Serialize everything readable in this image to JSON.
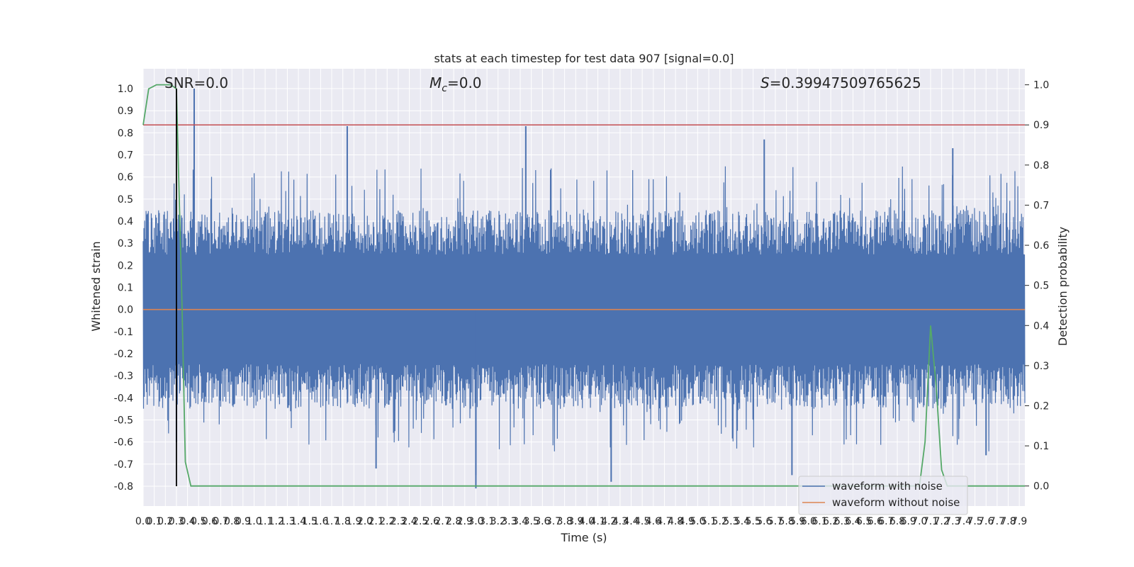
{
  "chart_data": {
    "type": "line",
    "title": "stats at each timestep for test data 907 [signal=0.0]",
    "xlabel": "Time (s)",
    "ylabel": "Whitened strain",
    "y2label": "Detection probability",
    "xlim": [
      0.0,
      7.95
    ],
    "ylim": [
      -0.89,
      1.09
    ],
    "y2lim": [
      -0.05,
      1.04
    ],
    "x_ticks": [
      "0.0",
      "0.1",
      "0.2",
      "0.3",
      "0.4",
      "0.5",
      "0.6",
      "0.7",
      "0.8",
      "0.9",
      "1.0",
      "1.1",
      "1.2",
      "1.3",
      "1.4",
      "1.5",
      "1.6",
      "1.7",
      "1.8",
      "1.9",
      "2.0",
      "2.1",
      "2.2",
      "2.3",
      "2.4",
      "2.5",
      "2.6",
      "2.7",
      "2.8",
      "2.9",
      "3.0",
      "3.1",
      "3.2",
      "3.3",
      "3.4",
      "3.5",
      "3.6",
      "3.7",
      "3.8",
      "3.9",
      "4.0",
      "4.1",
      "4.2",
      "4.3",
      "4.4",
      "4.5",
      "4.6",
      "4.7",
      "4.8",
      "4.9",
      "5.0",
      "5.1",
      "5.2",
      "5.3",
      "5.4",
      "5.5",
      "5.6",
      "5.7",
      "5.8",
      "5.9",
      "6.0",
      "6.1",
      "6.2",
      "6.3",
      "6.4",
      "6.5",
      "6.6",
      "6.7",
      "6.8",
      "6.9",
      "7.0",
      "7.1",
      "7.2",
      "7.3",
      "7.4",
      "7.5",
      "7.6",
      "7.7",
      "7.8",
      "7.9"
    ],
    "y_ticks": [
      "1.0",
      "0.9",
      "0.8",
      "0.7",
      "0.6",
      "0.5",
      "0.4",
      "0.3",
      "0.2",
      "0.1",
      "0.0",
      "-0.1",
      "-0.2",
      "-0.3",
      "-0.4",
      "-0.5",
      "-0.6",
      "-0.7",
      "-0.8"
    ],
    "y2_ticks": [
      "1.0",
      "0.9",
      "0.8",
      "0.7",
      "0.6",
      "0.5",
      "0.4",
      "0.3",
      "0.2",
      "0.1",
      "0.0"
    ],
    "annotations": {
      "snr": "SNR=0.0",
      "mc_symbol": "M",
      "mc_sub": "c",
      "mc_value": "=0.0",
      "s_symbol": "S",
      "s_value": "=0.39947509765625"
    },
    "legend": {
      "placement": "lower right",
      "entries": [
        "waveform with noise",
        "waveform without noise"
      ]
    },
    "series": [
      {
        "name": "waveform with noise",
        "color": "#4c72b0",
        "style": "dense noise",
        "envelope_typical": 0.45,
        "peaks": [
          {
            "x": 0.46,
            "y": 1.0
          },
          {
            "x": 1.84,
            "y": 0.83
          },
          {
            "x": 3.45,
            "y": 0.83
          },
          {
            "x": 5.6,
            "y": 0.77
          },
          {
            "x": 7.3,
            "y": 0.73
          },
          {
            "x": 3.0,
            "y": -0.81
          },
          {
            "x": 3.0,
            "y": -0.75
          },
          {
            "x": 4.22,
            "y": -0.78
          },
          {
            "x": 5.85,
            "y": -0.75
          },
          {
            "x": 2.1,
            "y": -0.72
          },
          {
            "x": 0.3,
            "y": -0.6
          },
          {
            "x": 7.6,
            "y": -0.66
          }
        ]
      },
      {
        "name": "waveform without noise",
        "color": "#dd8452",
        "x": [
          0.0,
          7.95
        ],
        "y": [
          0.0,
          0.0
        ]
      },
      {
        "name": "detection probability",
        "color": "#55a868",
        "axis": "right",
        "x": [
          0.0,
          0.05,
          0.12,
          0.2,
          0.25,
          0.3,
          0.35,
          0.38,
          0.43,
          0.5,
          6.95,
          7.0,
          7.05,
          7.1,
          7.15,
          7.2,
          7.25,
          7.3,
          7.35,
          7.8,
          7.95
        ],
        "y": [
          0.9,
          0.99,
          1.0,
          1.0,
          1.0,
          0.99,
          0.45,
          0.06,
          0.0,
          0.0,
          0.0,
          0.0,
          0.11,
          0.4,
          0.25,
          0.04,
          0.0,
          0.0,
          0.0,
          0.0,
          0.0
        ]
      }
    ],
    "threshold": {
      "axis": "right",
      "y": 0.9,
      "color": "#c44e52"
    },
    "marker_line": {
      "x": 0.3,
      "y_from": -0.8,
      "y_to": 1.0,
      "color": "#000000"
    },
    "background": "#eaeaf2",
    "grid": true
  }
}
